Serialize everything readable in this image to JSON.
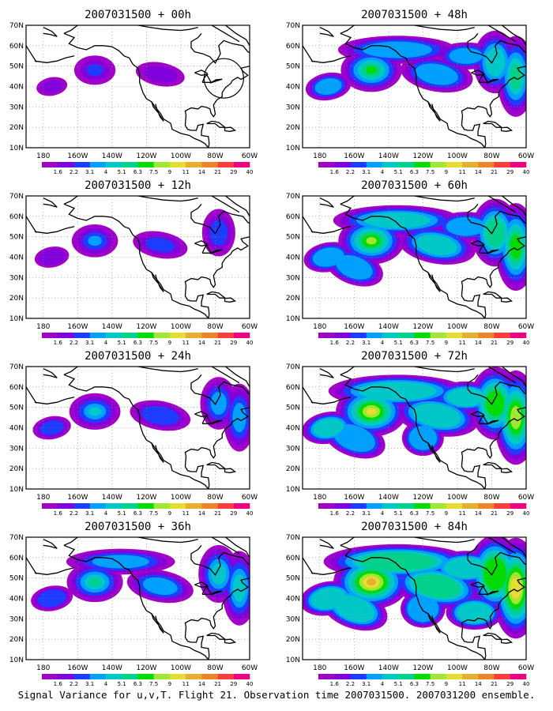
{
  "figure": {
    "caption": "Signal Variance for u,v,T. Flight 21. Observation time 2007031500. 2007031200 ensemble."
  },
  "axes": {
    "x_ticks": [
      "180",
      "160W",
      "140W",
      "120W",
      "100W",
      "80W",
      "60W"
    ],
    "y_ticks": [
      "10N",
      "20N",
      "30N",
      "40N",
      "50N",
      "60N",
      "70N"
    ],
    "lon_range": [
      -190,
      -60
    ],
    "lat_range": [
      10,
      70
    ],
    "gridlines": "dotted"
  },
  "colorbar": {
    "labels": [
      "1.6",
      "2.2",
      "3.1",
      "4",
      "5.1",
      "6.3",
      "7.5",
      "9",
      "11",
      "14",
      "21",
      "29",
      "40"
    ],
    "colors": [
      "#a000c8",
      "#8200dc",
      "#1e3cff",
      "#00a0ff",
      "#00c8c8",
      "#00d28c",
      "#00dc00",
      "#a0e632",
      "#e6dc32",
      "#e6af2d",
      "#f08228",
      "#fa3c3c",
      "#f00082"
    ]
  },
  "panels": [
    {
      "title": "2007031500 + 00h",
      "col": 0,
      "row": 0,
      "level": 0,
      "circle": true
    },
    {
      "title": "2007031500 + 48h",
      "col": 1,
      "row": 0,
      "level": 4
    },
    {
      "title": "2007031500 + 12h",
      "col": 0,
      "row": 1,
      "level": 1
    },
    {
      "title": "2007031500 + 60h",
      "col": 1,
      "row": 1,
      "level": 5
    },
    {
      "title": "2007031500 + 24h",
      "col": 0,
      "row": 2,
      "level": 2
    },
    {
      "title": "2007031500 + 72h",
      "col": 1,
      "row": 2,
      "level": 6
    },
    {
      "title": "2007031500 + 36h",
      "col": 0,
      "row": 3,
      "level": 3
    },
    {
      "title": "2007031500 + 84h",
      "col": 1,
      "row": 3,
      "level": 7
    }
  ]
}
